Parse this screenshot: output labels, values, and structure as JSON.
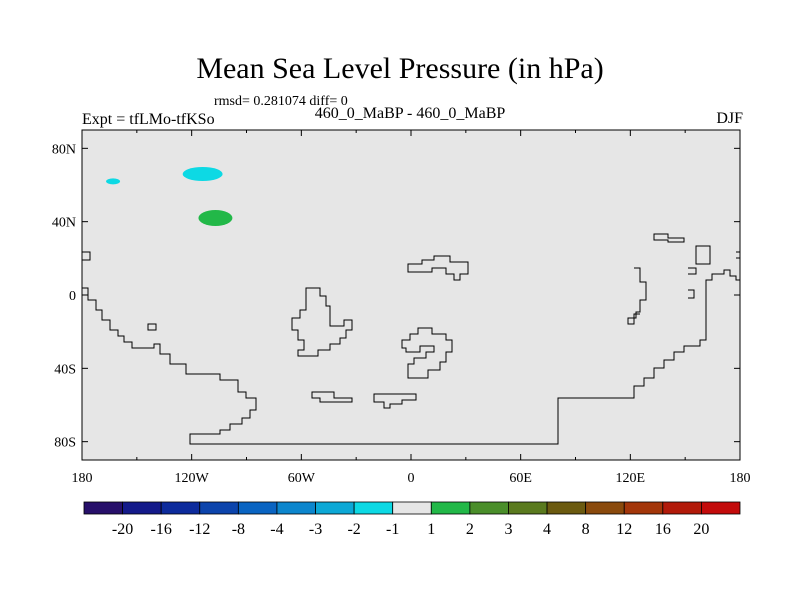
{
  "chart_data": {
    "type": "heatmap",
    "title": "Mean Sea Level Pressure (in hPa)",
    "stats": "rmsd= 0.281074 diff= 0",
    "expt": "Expt = tfLMo-tfKSo",
    "subtitle": "460_0_MaBP - 460_0_MaBP",
    "season": "DJF",
    "x_range": [
      -180,
      180
    ],
    "y_range": [
      -90,
      90
    ],
    "x_ticks": [
      {
        "value": -180,
        "label": "180"
      },
      {
        "value": -120,
        "label": "120W"
      },
      {
        "value": -60,
        "label": "60W"
      },
      {
        "value": 0,
        "label": "0"
      },
      {
        "value": 60,
        "label": "60E"
      },
      {
        "value": 120,
        "label": "120E"
      },
      {
        "value": 180,
        "label": "180"
      }
    ],
    "y_ticks": [
      {
        "value": 80,
        "label": "80N"
      },
      {
        "value": 40,
        "label": "40N"
      },
      {
        "value": 0,
        "label": "0"
      },
      {
        "value": -40,
        "label": "40S"
      },
      {
        "value": -80,
        "label": "80S"
      }
    ],
    "background_color": "#e6e6e6",
    "colorbar": {
      "boundaries": [
        "-20",
        "-16",
        "-12",
        "-8",
        "-4",
        "-3",
        "-2",
        "-1",
        "1",
        "2",
        "3",
        "4",
        "8",
        "12",
        "16",
        "20"
      ],
      "colors": [
        "#27106a",
        "#141a8a",
        "#0d2b9c",
        "#0c44ac",
        "#0a64c2",
        "#0c86cd",
        "#0ca8d6",
        "#0dd9e4",
        "#e6e6e6",
        "#22b848",
        "#4a8e2a",
        "#5a7a1e",
        "#6b5a10",
        "#8a4a0c",
        "#a3360a",
        "#b21a0a",
        "#c30b0b"
      ]
    },
    "anomaly_regions": [
      {
        "name": "small cyan patch",
        "lon": -163,
        "lat": 62,
        "category": "-1 to -2",
        "color": "#0dd9e4"
      },
      {
        "name": "cyan patch",
        "lon": -114,
        "lat": 66,
        "category": "-1 to -2",
        "color": "#0dd9e4"
      },
      {
        "name": "green patch",
        "lon": -107,
        "lat": 42,
        "category": "1 to 2",
        "color": "#22b848"
      }
    ]
  }
}
